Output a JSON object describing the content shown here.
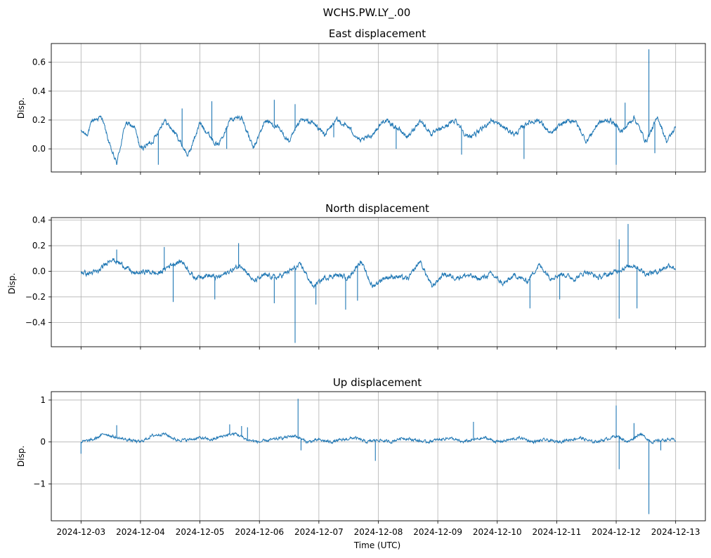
{
  "figure_title": "WCHS.PW.LY_.00",
  "x_axis_label": "Time (UTC)",
  "x_tick_labels": [
    "2024-12-03",
    "2024-12-04",
    "2024-12-05",
    "2024-12-06",
    "2024-12-07",
    "2024-12-08",
    "2024-12-09",
    "2024-12-10",
    "2024-12-11",
    "2024-12-12",
    "2024-12-13"
  ],
  "colors": {
    "line": "#1f77b4",
    "grid": "#b0b0b0",
    "axes": "#000000"
  },
  "chart_data": [
    {
      "type": "line",
      "title": "East displacement",
      "ylabel": "Disp.",
      "xlim": [
        -0.5,
        10.5
      ],
      "ylim": [
        -0.16,
        0.73
      ],
      "yticks": [
        0.0,
        0.2,
        0.4,
        0.6
      ],
      "ytick_labels": [
        "0.0",
        "0.2",
        "0.4",
        "0.6"
      ],
      "series": [
        {
          "name": "East",
          "x": [
            0,
            0.1,
            0.2,
            0.35,
            0.5,
            0.6,
            0.75,
            0.9,
            1.0,
            1.2,
            1.4,
            1.6,
            1.8,
            2.0,
            2.15,
            2.3,
            2.5,
            2.7,
            2.9,
            3.1,
            3.3,
            3.5,
            3.7,
            3.9,
            4.1,
            4.3,
            4.5,
            4.7,
            4.9,
            5.1,
            5.3,
            5.5,
            5.7,
            5.9,
            6.1,
            6.3,
            6.5,
            6.7,
            6.9,
            7.1,
            7.3,
            7.5,
            7.7,
            7.9,
            8.1,
            8.3,
            8.5,
            8.7,
            8.9,
            9.1,
            9.3,
            9.5,
            9.7,
            9.85,
            10.0
          ],
          "values": [
            0.12,
            0.1,
            0.2,
            0.22,
            0.0,
            -0.1,
            0.18,
            0.15,
            0.0,
            0.05,
            0.2,
            0.1,
            -0.05,
            0.18,
            0.1,
            0.02,
            0.2,
            0.22,
            0.0,
            0.2,
            0.15,
            0.05,
            0.2,
            0.18,
            0.1,
            0.2,
            0.15,
            0.05,
            0.1,
            0.2,
            0.15,
            0.08,
            0.2,
            0.1,
            0.15,
            0.2,
            0.08,
            0.12,
            0.2,
            0.15,
            0.1,
            0.18,
            0.2,
            0.1,
            0.18,
            0.2,
            0.05,
            0.18,
            0.2,
            0.12,
            0.22,
            0.05,
            0.22,
            0.05,
            0.15
          ],
          "spikes": [
            [
              1.3,
              -0.11
            ],
            [
              1.7,
              0.28
            ],
            [
              2.2,
              0.33
            ],
            [
              2.45,
              0.0
            ],
            [
              3.25,
              0.34
            ],
            [
              3.6,
              0.31
            ],
            [
              4.25,
              0.08
            ],
            [
              5.3,
              0.0
            ],
            [
              6.4,
              -0.04
            ],
            [
              7.45,
              -0.07
            ],
            [
              9.0,
              -0.11
            ],
            [
              9.15,
              0.32
            ],
            [
              9.55,
              0.69
            ],
            [
              9.65,
              -0.03
            ]
          ]
        }
      ]
    },
    {
      "type": "line",
      "title": "North displacement",
      "ylabel": "Disp.",
      "xlim": [
        -0.5,
        10.5
      ],
      "ylim": [
        -0.59,
        0.42
      ],
      "yticks": [
        -0.4,
        -0.2,
        0.0,
        0.2,
        0.4
      ],
      "ytick_labels": [
        "−0.4",
        "−0.2",
        "0.0",
        "0.2",
        "0.4"
      ],
      "series": [
        {
          "name": "North",
          "x": [
            0,
            0.1,
            0.3,
            0.5,
            0.7,
            0.9,
            1.1,
            1.3,
            1.5,
            1.7,
            1.9,
            2.1,
            2.3,
            2.5,
            2.7,
            2.9,
            3.1,
            3.3,
            3.5,
            3.7,
            3.9,
            4.1,
            4.3,
            4.5,
            4.7,
            4.9,
            5.1,
            5.3,
            5.5,
            5.7,
            5.9,
            6.1,
            6.3,
            6.5,
            6.7,
            6.9,
            7.1,
            7.3,
            7.5,
            7.7,
            7.9,
            8.1,
            8.3,
            8.5,
            8.7,
            8.9,
            9.1,
            9.3,
            9.5,
            9.7,
            9.9,
            10.0
          ],
          "values": [
            0.0,
            -0.02,
            0.0,
            0.1,
            0.05,
            -0.02,
            0.0,
            -0.02,
            0.05,
            0.08,
            -0.05,
            -0.03,
            -0.05,
            0.0,
            0.05,
            -0.08,
            -0.03,
            -0.05,
            0.0,
            0.05,
            -0.12,
            -0.05,
            -0.03,
            -0.05,
            0.08,
            -0.12,
            -0.05,
            -0.04,
            -0.06,
            0.08,
            -0.12,
            -0.02,
            -0.05,
            -0.03,
            -0.06,
            -0.02,
            -0.1,
            -0.03,
            -0.08,
            0.05,
            -0.05,
            -0.02,
            -0.06,
            0.0,
            -0.05,
            -0.02,
            0.02,
            0.05,
            -0.02,
            0.0,
            0.05,
            0.02
          ],
          "spikes": [
            [
              0.6,
              0.17
            ],
            [
              1.4,
              0.19
            ],
            [
              1.55,
              -0.24
            ],
            [
              2.25,
              -0.22
            ],
            [
              2.65,
              0.22
            ],
            [
              3.25,
              -0.25
            ],
            [
              3.6,
              -0.56
            ],
            [
              3.95,
              -0.26
            ],
            [
              4.45,
              -0.3
            ],
            [
              4.65,
              -0.23
            ],
            [
              7.55,
              -0.29
            ],
            [
              8.05,
              -0.22
            ],
            [
              9.05,
              -0.37
            ],
            [
              9.05,
              0.25
            ],
            [
              9.2,
              0.37
            ],
            [
              9.35,
              -0.29
            ]
          ]
        }
      ]
    },
    {
      "type": "line",
      "title": "Up displacement",
      "ylabel": "Disp.",
      "xlabel": "Time (UTC)",
      "xlim": [
        -0.5,
        10.5
      ],
      "ylim": [
        -1.88,
        1.2
      ],
      "yticks": [
        -1,
        0,
        1
      ],
      "ytick_labels": [
        "−1",
        "0",
        "1"
      ],
      "series": [
        {
          "name": "Up",
          "x": [
            0,
            0.2,
            0.4,
            0.6,
            0.8,
            1.0,
            1.2,
            1.4,
            1.6,
            1.8,
            2.0,
            2.2,
            2.4,
            2.6,
            2.8,
            3.0,
            3.2,
            3.4,
            3.6,
            3.8,
            4.0,
            4.2,
            4.4,
            4.6,
            4.8,
            5.0,
            5.2,
            5.4,
            5.6,
            5.8,
            6.0,
            6.2,
            6.4,
            6.6,
            6.8,
            7.0,
            7.2,
            7.4,
            7.6,
            7.8,
            8.0,
            8.2,
            8.4,
            8.6,
            8.8,
            9.0,
            9.2,
            9.4,
            9.6,
            9.8,
            10.0
          ],
          "values": [
            0.0,
            0.05,
            0.2,
            0.1,
            0.05,
            0.0,
            0.15,
            0.2,
            0.05,
            0.05,
            0.1,
            0.05,
            0.15,
            0.2,
            0.05,
            0.0,
            0.05,
            0.1,
            0.15,
            0.0,
            0.05,
            0.0,
            0.05,
            0.1,
            0.0,
            0.05,
            0.0,
            0.1,
            0.05,
            0.0,
            0.05,
            0.1,
            0.0,
            0.05,
            0.1,
            0.0,
            0.05,
            0.1,
            0.0,
            0.05,
            0.0,
            0.05,
            0.1,
            0.0,
            0.05,
            0.15,
            0.0,
            0.2,
            0.0,
            0.05,
            0.05
          ],
          "spikes": [
            [
              0.0,
              -0.28
            ],
            [
              0.6,
              0.4
            ],
            [
              2.5,
              0.42
            ],
            [
              2.7,
              0.38
            ],
            [
              2.8,
              0.35
            ],
            [
              3.65,
              1.03
            ],
            [
              3.7,
              -0.2
            ],
            [
              4.95,
              -0.45
            ],
            [
              6.6,
              0.48
            ],
            [
              9.0,
              0.87
            ],
            [
              9.05,
              -0.65
            ],
            [
              9.3,
              0.45
            ],
            [
              9.55,
              -1.72
            ],
            [
              9.75,
              -0.2
            ]
          ]
        }
      ]
    }
  ]
}
